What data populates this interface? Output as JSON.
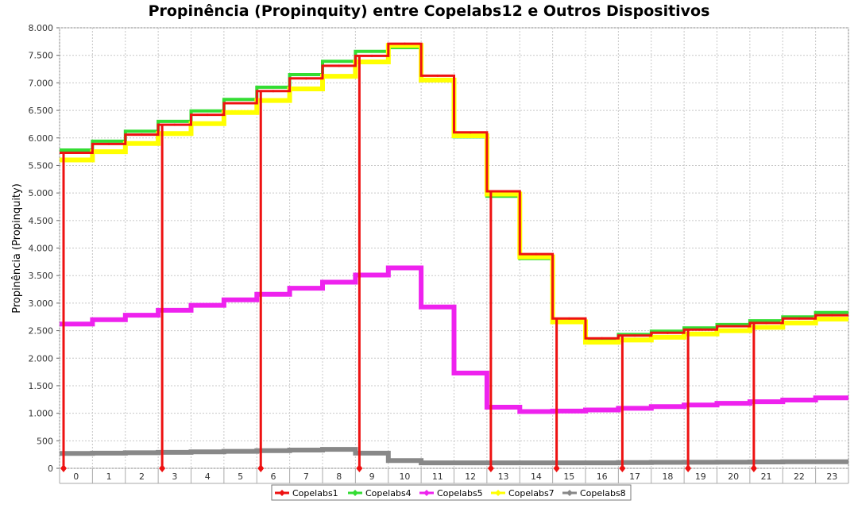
{
  "chart_data": {
    "type": "line",
    "title": "Propinência (Propinquity) entre Copelabs12 e Outros Dispositivos",
    "xlabel": "",
    "ylabel": "Propinência (Propinquity)",
    "categories": [
      "0",
      "1",
      "2",
      "3",
      "4",
      "5",
      "6",
      "7",
      "8",
      "9",
      "10",
      "11",
      "12",
      "13",
      "14",
      "15",
      "16",
      "17",
      "18",
      "19",
      "20",
      "21",
      "22",
      "23"
    ],
    "ylim": [
      0,
      8000
    ],
    "yticks": [
      0,
      500,
      1000,
      1500,
      2000,
      2500,
      3000,
      3500,
      4000,
      4500,
      5000,
      5500,
      6000,
      6500,
      7000,
      7500,
      8000
    ],
    "ytick_labels": [
      "0",
      "500",
      "1.000",
      "1.500",
      "2.000",
      "2.500",
      "3.000",
      "3.500",
      "4.000",
      "4.500",
      "5.000",
      "5.500",
      "6.000",
      "6.500",
      "7.000",
      "7.500",
      "8.000"
    ],
    "grid": true,
    "legend_position": "bottom",
    "drop_to_zero_hours": [
      0,
      3,
      6,
      9,
      13,
      15,
      17,
      19,
      21
    ],
    "series": [
      {
        "name": "Copelabs1",
        "color": "#ee1111",
        "width": 3,
        "values": [
          5730,
          5890,
          6060,
          6240,
          6420,
          6630,
          6850,
          7080,
          7310,
          7490,
          7710,
          7130,
          6100,
          5030,
          3890,
          2720,
          2360,
          2410,
          2460,
          2520,
          2580,
          2640,
          2720,
          2780
        ]
      },
      {
        "name": "Copelabs4",
        "color": "#33dd33",
        "width": 4,
        "values": [
          5780,
          5940,
          6120,
          6300,
          6490,
          6700,
          6920,
          7150,
          7390,
          7570,
          7640,
          7060,
          6020,
          4940,
          3810,
          2670,
          2350,
          2430,
          2490,
          2550,
          2610,
          2680,
          2750,
          2830
        ]
      },
      {
        "name": "Copelabs5",
        "color": "#ee22ee",
        "width": 6,
        "values": [
          2620,
          2700,
          2780,
          2870,
          2960,
          3060,
          3160,
          3270,
          3380,
          3510,
          3640,
          2930,
          1730,
          1110,
          1030,
          1040,
          1060,
          1090,
          1120,
          1150,
          1180,
          1210,
          1240,
          1280
        ]
      },
      {
        "name": "Copelabs7",
        "color": "#ffff00",
        "width": 6,
        "values": [
          5600,
          5750,
          5900,
          6080,
          6260,
          6460,
          6680,
          6890,
          7120,
          7380,
          7680,
          7050,
          6040,
          4980,
          3840,
          2660,
          2290,
          2330,
          2380,
          2440,
          2500,
          2560,
          2640,
          2710
        ]
      },
      {
        "name": "Copelabs8",
        "color": "#888888",
        "width": 6,
        "values": [
          270,
          275,
          282,
          290,
          298,
          308,
          320,
          332,
          345,
          275,
          140,
          100,
          100,
          100,
          100,
          100,
          100,
          105,
          108,
          110,
          112,
          115,
          118,
          120
        ]
      }
    ]
  }
}
